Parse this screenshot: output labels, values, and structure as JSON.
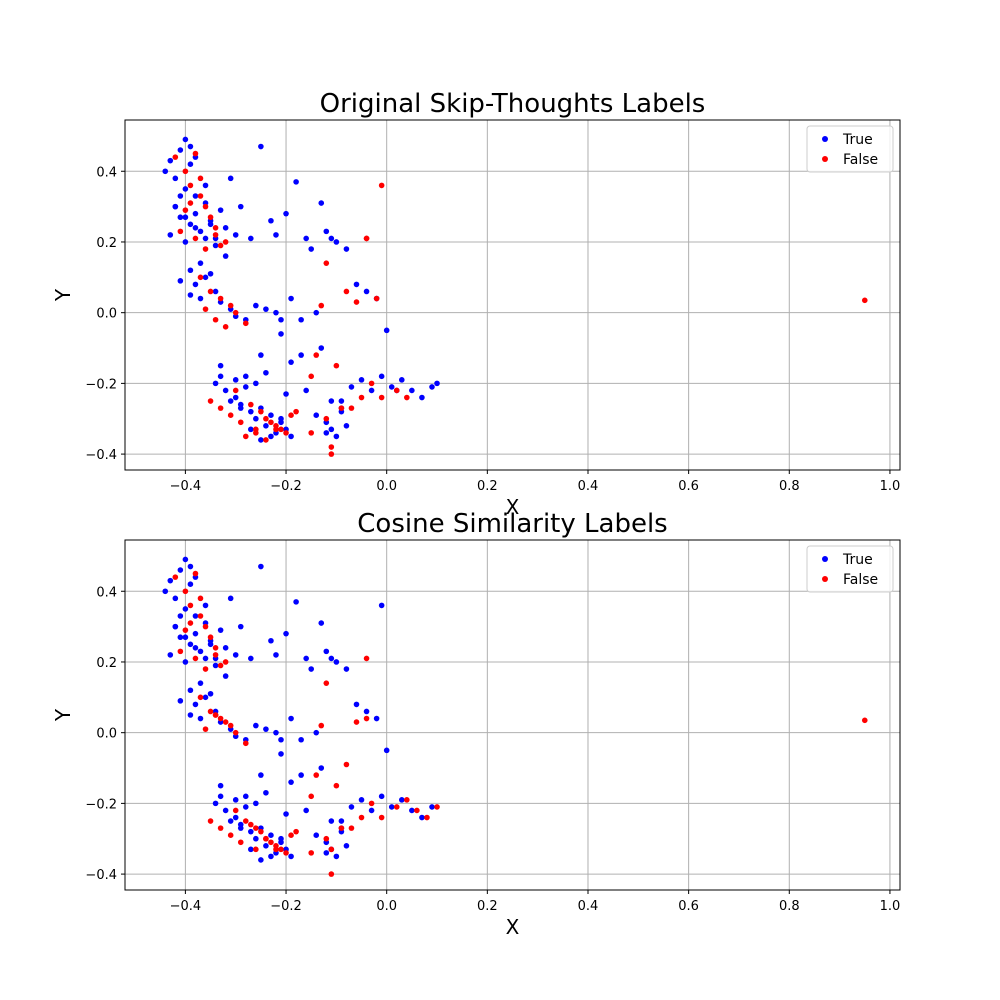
{
  "colors": {
    "True": "#0000ff",
    "False": "#ff0000",
    "grid": "#b0b0b0",
    "frame": "#000000"
  },
  "chart_data": [
    {
      "type": "scatter",
      "title": "Original Skip-Thoughts Labels",
      "xlabel": "X",
      "ylabel": "Y",
      "xlim": [
        -0.52,
        1.02
      ],
      "ylim": [
        -0.445,
        0.545
      ],
      "xticks": [
        -0.4,
        -0.2,
        0.0,
        0.2,
        0.4,
        0.6,
        0.8,
        1.0
      ],
      "xtick_labels": [
        "−0.4",
        "−0.2",
        "0.0",
        "0.2",
        "0.4",
        "0.6",
        "0.8",
        "1.0"
      ],
      "yticks": [
        -0.4,
        -0.2,
        0.0,
        0.2,
        0.4
      ],
      "ytick_labels": [
        "−0.4",
        "−0.2",
        "0.0",
        "0.2",
        "0.4"
      ],
      "grid": true,
      "legend_position": "top-right",
      "series": [
        {
          "name": "True",
          "color": "#0000ff",
          "x": [
            -0.44,
            -0.43,
            -0.42,
            -0.41,
            -0.4,
            -0.39,
            -0.4,
            -0.38,
            -0.42,
            -0.41,
            -0.39,
            -0.37,
            -0.43,
            -0.4,
            -0.38,
            -0.36,
            -0.35,
            -0.33,
            -0.34,
            -0.32,
            -0.3,
            -0.36,
            -0.38,
            -0.41,
            -0.39,
            -0.35,
            -0.31,
            -0.29,
            -0.27,
            -0.25,
            -0.23,
            -0.22,
            -0.2,
            -0.18,
            -0.16,
            -0.15,
            -0.13,
            -0.12,
            -0.11,
            -0.1,
            -0.08,
            -0.06,
            -0.04,
            -0.02,
            -0.0,
            -0.36,
            -0.34,
            -0.33,
            -0.31,
            -0.38,
            -0.39,
            -0.37,
            -0.35,
            -0.3,
            -0.28,
            -0.26,
            -0.24,
            -0.22,
            -0.21,
            -0.19,
            -0.17,
            -0.14,
            -0.13,
            -0.34,
            -0.33,
            -0.32,
            -0.3,
            -0.29,
            -0.28,
            -0.27,
            -0.26,
            -0.25,
            -0.24,
            -0.23,
            -0.22,
            -0.21,
            -0.2,
            -0.19,
            -0.31,
            -0.29,
            -0.27,
            -0.25,
            -0.23,
            -0.21,
            -0.12,
            -0.11,
            -0.1,
            -0.09,
            -0.08,
            -0.09,
            -0.07,
            -0.05,
            -0.03,
            -0.01,
            0.01,
            0.03,
            0.05,
            0.07,
            0.09,
            0.1,
            0.02,
            -0.25,
            -0.19,
            -0.17,
            -0.21,
            -0.28,
            -0.33,
            -0.3,
            -0.24,
            -0.26,
            -0.2,
            -0.16,
            -0.11,
            -0.09,
            -0.14,
            -0.12,
            -0.42,
            -0.4,
            -0.38,
            -0.36,
            -0.34,
            -0.32,
            -0.41,
            -0.39,
            -0.37
          ],
          "y": [
            0.4,
            0.43,
            0.38,
            0.46,
            0.49,
            0.42,
            0.35,
            0.33,
            0.3,
            0.27,
            0.25,
            0.23,
            0.22,
            0.2,
            0.28,
            0.31,
            0.26,
            0.29,
            0.21,
            0.24,
            0.22,
            0.36,
            0.44,
            0.33,
            0.47,
            0.25,
            0.38,
            0.3,
            0.21,
            0.47,
            0.26,
            0.22,
            0.28,
            0.37,
            0.21,
            0.18,
            0.31,
            0.23,
            0.21,
            0.2,
            0.18,
            0.08,
            0.06,
            0.04,
            -0.05,
            0.1,
            0.06,
            0.03,
            0.01,
            0.08,
            0.05,
            0.04,
            0.11,
            -0.01,
            -0.02,
            0.02,
            0.01,
            0.0,
            -0.02,
            0.04,
            -0.02,
            0.0,
            -0.1,
            -0.2,
            -0.18,
            -0.22,
            -0.24,
            -0.26,
            -0.21,
            -0.28,
            -0.3,
            -0.27,
            -0.32,
            -0.29,
            -0.34,
            -0.31,
            -0.33,
            -0.35,
            -0.25,
            -0.27,
            -0.33,
            -0.36,
            -0.35,
            -0.3,
            -0.31,
            -0.33,
            -0.35,
            -0.28,
            -0.32,
            -0.25,
            -0.21,
            -0.19,
            -0.22,
            -0.18,
            -0.21,
            -0.19,
            -0.22,
            -0.24,
            -0.21,
            -0.2,
            -0.22,
            -0.12,
            -0.14,
            -0.12,
            -0.06,
            -0.18,
            -0.15,
            -0.19,
            -0.17,
            -0.2,
            -0.23,
            -0.22,
            -0.25,
            -0.27,
            -0.29,
            -0.34,
            0.3,
            0.27,
            0.24,
            0.21,
            0.19,
            0.16,
            0.09,
            0.12,
            0.14
          ]
        },
        {
          "name": "False",
          "color": "#ff0000",
          "x": [
            -0.4,
            -0.39,
            -0.38,
            -0.37,
            -0.36,
            -0.35,
            -0.34,
            -0.38,
            -0.36,
            -0.34,
            -0.33,
            -0.32,
            -0.41,
            -0.39,
            -0.37,
            -0.35,
            -0.33,
            -0.31,
            -0.36,
            -0.34,
            -0.32,
            -0.3,
            -0.28,
            -0.35,
            -0.33,
            -0.31,
            -0.29,
            -0.26,
            -0.24,
            -0.22,
            -0.2,
            -0.18,
            -0.27,
            -0.25,
            -0.23,
            -0.21,
            -0.19,
            -0.28,
            -0.26,
            -0.24,
            -0.22,
            -0.3,
            -0.15,
            -0.12,
            -0.07,
            -0.05,
            -0.03,
            -0.01,
            -0.12,
            -0.14,
            -0.1,
            -0.08,
            -0.13,
            -0.06,
            -0.04,
            -0.02,
            0.02,
            0.04,
            0.95,
            -0.01,
            -0.04,
            -0.15,
            -0.11,
            -0.09,
            -0.11,
            -0.42,
            -0.4,
            -0.37
          ],
          "y": [
            0.4,
            0.36,
            0.45,
            0.33,
            0.3,
            0.27,
            0.24,
            0.21,
            0.18,
            0.22,
            0.19,
            0.2,
            0.23,
            0.31,
            0.38,
            0.06,
            0.04,
            0.02,
            0.01,
            -0.02,
            -0.04,
            0.0,
            -0.03,
            -0.25,
            -0.27,
            -0.29,
            -0.31,
            -0.33,
            -0.3,
            -0.32,
            -0.34,
            -0.28,
            -0.26,
            -0.28,
            -0.31,
            -0.33,
            -0.29,
            -0.35,
            -0.34,
            -0.36,
            -0.33,
            -0.22,
            -0.34,
            -0.3,
            -0.27,
            -0.24,
            -0.2,
            -0.24,
            0.14,
            -0.12,
            -0.15,
            0.06,
            0.02,
            0.03,
            0.21,
            0.04,
            -0.22,
            -0.24,
            0.035,
            0.36,
            0.21,
            -0.18,
            -0.38,
            -0.27,
            -0.4,
            0.44,
            0.29,
            0.1
          ]
        }
      ]
    },
    {
      "type": "scatter",
      "title": "Cosine Similarity Labels",
      "xlabel": "X",
      "ylabel": "Y",
      "xlim": [
        -0.52,
        1.02
      ],
      "ylim": [
        -0.445,
        0.545
      ],
      "xticks": [
        -0.4,
        -0.2,
        0.0,
        0.2,
        0.4,
        0.6,
        0.8,
        1.0
      ],
      "xtick_labels": [
        "−0.4",
        "−0.2",
        "0.0",
        "0.2",
        "0.4",
        "0.6",
        "0.8",
        "1.0"
      ],
      "yticks": [
        -0.4,
        -0.2,
        0.0,
        0.2,
        0.4
      ],
      "ytick_labels": [
        "−0.4",
        "−0.2",
        "0.0",
        "0.2",
        "0.4"
      ],
      "grid": true,
      "legend_position": "top-right",
      "series": [
        {
          "name": "True",
          "color": "#0000ff",
          "x": [
            -0.44,
            -0.43,
            -0.42,
            -0.41,
            -0.4,
            -0.39,
            -0.4,
            -0.38,
            -0.42,
            -0.41,
            -0.39,
            -0.37,
            -0.43,
            -0.4,
            -0.38,
            -0.36,
            -0.35,
            -0.33,
            -0.34,
            -0.32,
            -0.3,
            -0.36,
            -0.38,
            -0.41,
            -0.39,
            -0.35,
            -0.31,
            -0.29,
            -0.27,
            -0.25,
            -0.23,
            -0.22,
            -0.2,
            -0.18,
            -0.16,
            -0.15,
            -0.13,
            -0.12,
            -0.11,
            -0.1,
            -0.08,
            -0.06,
            -0.04,
            -0.02,
            -0.0,
            -0.36,
            -0.34,
            -0.33,
            -0.31,
            -0.38,
            -0.39,
            -0.37,
            -0.35,
            -0.3,
            -0.28,
            -0.26,
            -0.24,
            -0.22,
            -0.21,
            -0.19,
            -0.17,
            -0.14,
            -0.13,
            -0.34,
            -0.33,
            -0.32,
            -0.3,
            -0.29,
            -0.28,
            -0.27,
            -0.26,
            -0.25,
            -0.24,
            -0.23,
            -0.22,
            -0.21,
            -0.2,
            -0.19,
            -0.31,
            -0.29,
            -0.27,
            -0.25,
            -0.23,
            -0.21,
            -0.12,
            -0.11,
            -0.1,
            -0.09,
            -0.08,
            -0.09,
            -0.07,
            -0.05,
            -0.03,
            -0.01,
            0.01,
            0.03,
            0.05,
            0.07,
            0.09,
            -0.25,
            -0.19,
            -0.17,
            -0.21,
            -0.28,
            -0.33,
            -0.3,
            -0.24,
            -0.26,
            -0.2,
            -0.16,
            -0.11,
            -0.09,
            -0.14,
            -0.12,
            -0.42,
            -0.4,
            -0.38,
            -0.36,
            -0.34,
            -0.32,
            -0.41,
            -0.39,
            -0.37,
            -0.01
          ],
          "y": [
            0.4,
            0.43,
            0.38,
            0.46,
            0.49,
            0.42,
            0.35,
            0.33,
            0.3,
            0.27,
            0.25,
            0.23,
            0.22,
            0.2,
            0.28,
            0.31,
            0.26,
            0.29,
            0.21,
            0.24,
            0.22,
            0.36,
            0.44,
            0.33,
            0.47,
            0.25,
            0.38,
            0.3,
            0.21,
            0.47,
            0.26,
            0.22,
            0.28,
            0.37,
            0.21,
            0.18,
            0.31,
            0.23,
            0.21,
            0.2,
            0.18,
            0.08,
            0.06,
            0.04,
            -0.05,
            0.1,
            0.06,
            0.03,
            0.01,
            0.08,
            0.05,
            0.04,
            0.11,
            -0.01,
            -0.02,
            0.02,
            0.01,
            0.0,
            -0.02,
            0.04,
            -0.02,
            0.0,
            -0.1,
            -0.2,
            -0.18,
            -0.22,
            -0.24,
            -0.26,
            -0.21,
            -0.28,
            -0.3,
            -0.27,
            -0.32,
            -0.29,
            -0.34,
            -0.31,
            -0.33,
            -0.35,
            -0.25,
            -0.27,
            -0.33,
            -0.36,
            -0.35,
            -0.3,
            -0.31,
            -0.33,
            -0.35,
            -0.28,
            -0.32,
            -0.25,
            -0.21,
            -0.19,
            -0.22,
            -0.18,
            -0.21,
            -0.19,
            -0.22,
            -0.24,
            -0.21,
            -0.12,
            -0.14,
            -0.12,
            -0.06,
            -0.18,
            -0.15,
            -0.19,
            -0.17,
            -0.2,
            -0.23,
            -0.22,
            -0.25,
            -0.27,
            -0.29,
            -0.34,
            0.3,
            0.27,
            0.24,
            0.21,
            0.19,
            0.16,
            0.09,
            0.12,
            0.14,
            0.36
          ]
        },
        {
          "name": "False",
          "color": "#ff0000",
          "x": [
            -0.4,
            -0.39,
            -0.38,
            -0.37,
            -0.36,
            -0.35,
            -0.34,
            -0.38,
            -0.36,
            -0.34,
            -0.33,
            -0.32,
            -0.41,
            -0.39,
            -0.37,
            -0.35,
            -0.33,
            -0.31,
            -0.36,
            -0.34,
            -0.32,
            -0.3,
            -0.28,
            -0.35,
            -0.33,
            -0.31,
            -0.29,
            -0.26,
            -0.24,
            -0.22,
            -0.2,
            -0.18,
            -0.27,
            -0.25,
            -0.23,
            -0.21,
            -0.19,
            -0.28,
            -0.26,
            -0.24,
            -0.22,
            -0.3,
            -0.15,
            -0.12,
            -0.07,
            -0.05,
            -0.03,
            -0.01,
            -0.12,
            -0.14,
            -0.1,
            -0.08,
            -0.13,
            -0.06,
            -0.04,
            0.02,
            0.04,
            0.06,
            0.08,
            0.1,
            0.95,
            -0.04,
            -0.15,
            -0.11,
            -0.09,
            -0.11,
            -0.42,
            -0.4,
            -0.37,
            -0.34
          ],
          "y": [
            0.4,
            0.36,
            0.45,
            0.33,
            0.3,
            0.27,
            0.24,
            0.21,
            0.18,
            0.22,
            0.19,
            0.2,
            0.23,
            0.31,
            0.38,
            0.06,
            0.04,
            0.02,
            0.01,
            0.05,
            0.03,
            0.0,
            -0.03,
            -0.25,
            -0.27,
            -0.29,
            -0.31,
            -0.33,
            -0.3,
            -0.32,
            -0.34,
            -0.28,
            -0.26,
            -0.28,
            -0.31,
            -0.33,
            -0.29,
            -0.25,
            -0.27,
            -0.3,
            -0.33,
            -0.22,
            -0.34,
            -0.3,
            -0.27,
            -0.24,
            -0.2,
            -0.24,
            0.14,
            -0.12,
            -0.15,
            -0.09,
            0.02,
            0.03,
            0.21,
            -0.21,
            -0.19,
            -0.22,
            -0.24,
            -0.21,
            0.035,
            0.04,
            -0.18,
            -0.4,
            -0.27,
            -0.33,
            0.44,
            0.29,
            0.1,
            0.05
          ]
        }
      ]
    }
  ]
}
